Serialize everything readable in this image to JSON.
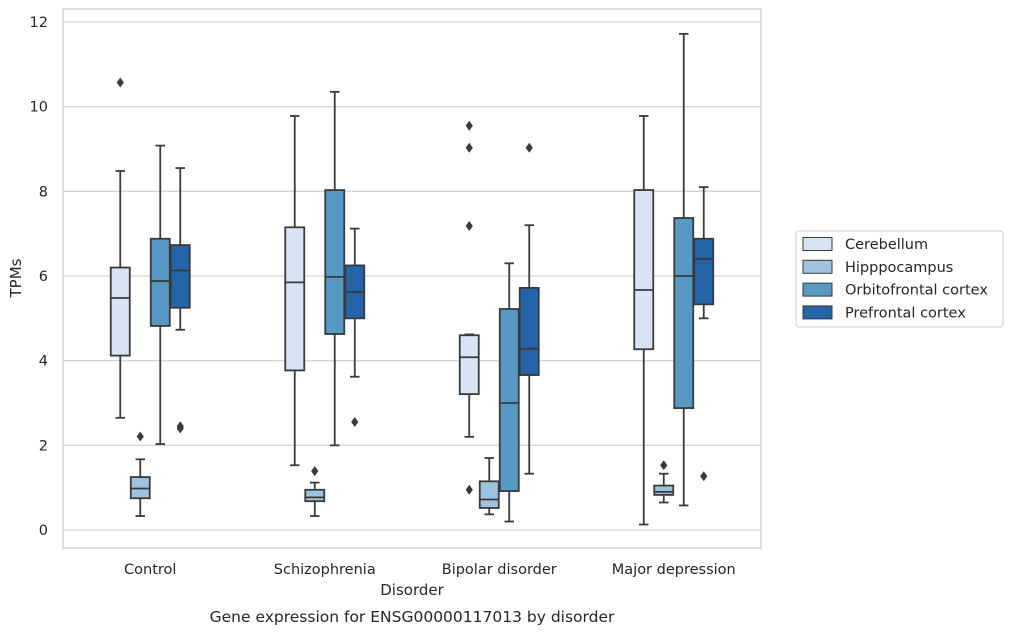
{
  "chart_data": {
    "type": "box",
    "caption": "Gene expression for ENSG00000117013 by disorder",
    "xlabel": "Disorder",
    "ylabel": "TPMs",
    "ylim": [
      -0.4,
      12.3
    ],
    "yticks": [
      0,
      2,
      4,
      6,
      8,
      10,
      12
    ],
    "grid": true,
    "legend_position": "right",
    "categories": [
      "Control",
      "Schizophrenia",
      "Bipolar disorder",
      "Major depression"
    ],
    "series": [
      {
        "name": "Cerebellum",
        "color": "#d6e4f3",
        "boxes": [
          {
            "whislo": 2.65,
            "q1": 4.12,
            "med": 5.48,
            "q3": 6.2,
            "whishi": 8.48,
            "fliers": [
              10.57
            ]
          },
          {
            "whislo": 1.53,
            "q1": 3.77,
            "med": 5.85,
            "q3": 7.15,
            "whishi": 9.78,
            "fliers": []
          },
          {
            "whislo": 2.2,
            "q1": 3.21,
            "med": 4.08,
            "q3": 4.6,
            "whishi": 4.62,
            "fliers": [
              0.95,
              7.18,
              9.03,
              9.55
            ]
          },
          {
            "whislo": 0.13,
            "q1": 4.27,
            "med": 5.67,
            "q3": 8.03,
            "whishi": 9.78,
            "fliers": []
          }
        ]
      },
      {
        "name": "Hipppocampus",
        "color": "#9dc3df",
        "boxes": [
          {
            "whislo": 0.33,
            "q1": 0.75,
            "med": 0.98,
            "q3": 1.25,
            "whishi": 1.67,
            "fliers": [
              2.21
            ]
          },
          {
            "whislo": 0.33,
            "q1": 0.68,
            "med": 0.77,
            "q3": 0.95,
            "whishi": 1.12,
            "fliers": [
              1.39
            ]
          },
          {
            "whislo": 0.37,
            "q1": 0.52,
            "med": 0.72,
            "q3": 1.15,
            "whishi": 1.7,
            "fliers": []
          },
          {
            "whislo": 0.65,
            "q1": 0.83,
            "med": 0.9,
            "q3": 1.05,
            "whishi": 1.33,
            "fliers": [
              1.53
            ]
          }
        ]
      },
      {
        "name": "Orbitofrontal cortex",
        "color": "#5799c5",
        "boxes": [
          {
            "whislo": 2.03,
            "q1": 4.82,
            "med": 5.88,
            "q3": 6.88,
            "whishi": 9.08,
            "fliers": []
          },
          {
            "whislo": 2.0,
            "q1": 4.63,
            "med": 5.98,
            "q3": 8.03,
            "whishi": 10.35,
            "fliers": []
          },
          {
            "whislo": 0.2,
            "q1": 0.92,
            "med": 3.0,
            "q3": 5.22,
            "whishi": 6.3,
            "fliers": []
          },
          {
            "whislo": 0.58,
            "q1": 2.88,
            "med": 6.0,
            "q3": 7.37,
            "whishi": 11.72,
            "fliers": []
          }
        ]
      },
      {
        "name": "Prefrontal cortex",
        "color": "#2464a8",
        "boxes": [
          {
            "whislo": 4.73,
            "q1": 5.25,
            "med": 6.13,
            "q3": 6.73,
            "whishi": 8.55,
            "fliers": [
              2.4,
              2.45
            ]
          },
          {
            "whislo": 3.62,
            "q1": 5.0,
            "med": 5.62,
            "q3": 6.25,
            "whishi": 7.12,
            "fliers": [
              2.55
            ]
          },
          {
            "whislo": 1.33,
            "q1": 3.66,
            "med": 4.28,
            "q3": 5.72,
            "whishi": 7.2,
            "fliers": [
              9.03
            ]
          },
          {
            "whislo": 5.0,
            "q1": 5.33,
            "med": 6.4,
            "q3": 6.88,
            "whishi": 8.1,
            "fliers": [
              1.27
            ]
          }
        ]
      }
    ]
  }
}
